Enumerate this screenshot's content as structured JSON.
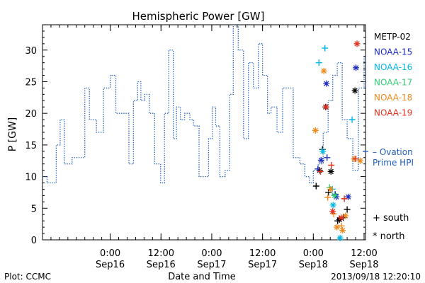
{
  "chart_data": {
    "type": "line",
    "title": "Hemispheric Power [GW]",
    "xlabel": "Date and Time",
    "ylabel": "P [GW]",
    "ylim": [
      0,
      34
    ],
    "xlim": [
      "2013-09-15 08:00",
      "2013-09-18 12:20"
    ],
    "yticks": [
      0,
      5,
      10,
      15,
      20,
      25,
      30
    ],
    "xticks": [
      {
        "x": "2013-09-16 00:00",
        "time": "0:00",
        "date": "Sep16"
      },
      {
        "x": "2013-09-16 12:00",
        "time": "12:00",
        "date": "Sep16"
      },
      {
        "x": "2013-09-17 00:00",
        "time": "0:00",
        "date": "Sep17"
      },
      {
        "x": "2013-09-17 12:00",
        "time": "12:00",
        "date": "Sep17"
      },
      {
        "x": "2013-09-18 00:00",
        "time": "0:00",
        "date": "Sep18"
      },
      {
        "x": "2013-09-18 12:00",
        "time": "12:00",
        "date": "Sep18"
      }
    ],
    "ovation": {
      "name": "Ovation Prime HPI",
      "legend_lines": [
        "– Ovation",
        "Prime HPI"
      ],
      "color": "#1f5fbf",
      "x": [
        "2013-09-15 08:00",
        "2013-09-15 09:05",
        "2013-09-15 11:15",
        "2013-09-15 12:10",
        "2013-09-15 13:10",
        "2013-09-15 15:00",
        "2013-09-15 18:00",
        "2013-09-15 19:05",
        "2013-09-15 20:45",
        "2013-09-15 22:25",
        "2013-09-16 00:00",
        "2013-09-16 01:20",
        "2013-09-16 03:15",
        "2013-09-16 04:25",
        "2013-09-16 05:30",
        "2013-09-16 06:30",
        "2013-09-16 07:15",
        "2013-09-16 08:10",
        "2013-09-16 09:15",
        "2013-09-16 10:30",
        "2013-09-16 11:55",
        "2013-09-16 12:50",
        "2013-09-16 13:50",
        "2013-09-16 14:55",
        "2013-09-16 15:40",
        "2013-09-16 16:35",
        "2013-09-16 17:35",
        "2013-09-16 18:50",
        "2013-09-16 19:40",
        "2013-09-16 21:00",
        "2013-09-16 22:25",
        "2013-09-16 23:15",
        "2013-09-17 00:10",
        "2013-09-17 00:55",
        "2013-09-17 01:55",
        "2013-09-17 03:10",
        "2013-09-17 04:15",
        "2013-09-17 05:05",
        "2013-09-17 06:15",
        "2013-09-17 07:30",
        "2013-09-17 08:40",
        "2013-09-17 09:50",
        "2013-09-17 11:00",
        "2013-09-17 12:00",
        "2013-09-17 13:10",
        "2013-09-17 14:00",
        "2013-09-17 15:25",
        "2013-09-17 16:45",
        "2013-09-17 18:10",
        "2013-09-17 19:15",
        "2013-09-17 20:50",
        "2013-09-17 22:00",
        "2013-09-17 23:05",
        "2013-09-18 00:00",
        "2013-09-18 01:10",
        "2013-09-18 02:20",
        "2013-09-18 03:30",
        "2013-09-18 04:35",
        "2013-09-18 05:40",
        "2013-09-18 06:50",
        "2013-09-18 08:00",
        "2013-09-18 09:20",
        "2013-09-18 10:40",
        "2013-09-18 12:00",
        "2013-09-18 12:20"
      ],
      "y": [
        10,
        9,
        15,
        19,
        12,
        13,
        24,
        19,
        17,
        24,
        26,
        20,
        20,
        12,
        22,
        25,
        22,
        23,
        20,
        12,
        9,
        20,
        30,
        16,
        21,
        19,
        20,
        19,
        18,
        10,
        10,
        16,
        21,
        18,
        10,
        11,
        23,
        34,
        30,
        16,
        28,
        24,
        31,
        26,
        20,
        21,
        17,
        24,
        24,
        13,
        12,
        10,
        9,
        11,
        12,
        17,
        22,
        26,
        28,
        19,
        16,
        11,
        24,
        29,
        29
      ]
    },
    "series": [
      {
        "name": "METP-02",
        "color": "#000000",
        "south": [
          {
            "x": "2013-09-18 00:40",
            "y": 8.5
          },
          {
            "x": "2013-09-18 02:10",
            "y": 14.3
          },
          {
            "x": "2013-09-18 03:35",
            "y": 7.5
          },
          {
            "x": "2013-09-18 05:45",
            "y": 3
          },
          {
            "x": "2013-09-18 07:05",
            "y": 3.5
          },
          {
            "x": "2013-09-18 08:00",
            "y": 4.8
          }
        ],
        "north": [
          {
            "x": "2013-09-18 01:30",
            "y": 11
          },
          {
            "x": "2013-09-18 02:55",
            "y": 21
          },
          {
            "x": "2013-09-18 04:10",
            "y": 10.8
          },
          {
            "x": "2013-09-18 06:10",
            "y": 3.2
          },
          {
            "x": "2013-09-18 09:50",
            "y": 23.6
          }
        ]
      },
      {
        "name": "NOAA-15",
        "color": "#1f2fbf",
        "south": [
          {
            "x": "2013-09-18 01:05",
            "y": 11.2
          },
          {
            "x": "2013-09-18 03:15",
            "y": 13
          },
          {
            "x": "2013-09-18 05:10",
            "y": 7.2
          }
        ],
        "north": [
          {
            "x": "2013-09-18 01:50",
            "y": 12.6
          },
          {
            "x": "2013-09-18 03:05",
            "y": 24.7
          },
          {
            "x": "2013-09-18 05:25",
            "y": 6.8
          },
          {
            "x": "2013-09-18 08:15",
            "y": 6.8
          },
          {
            "x": "2013-09-18 10:05",
            "y": 27.2
          }
        ]
      },
      {
        "name": "NOAA-16",
        "color": "#00b7e6",
        "south": [
          {
            "x": "2013-09-18 01:20",
            "y": 28
          },
          {
            "x": "2013-09-18 02:45",
            "y": 30.3
          },
          {
            "x": "2013-09-18 04:30",
            "y": 8
          },
          {
            "x": "2013-09-18 09:10",
            "y": 19
          }
        ],
        "north": [
          {
            "x": "2013-09-18 02:15",
            "y": 14
          },
          {
            "x": "2013-09-18 04:40",
            "y": 5.5
          },
          {
            "x": "2013-09-18 06:20",
            "y": 0.3
          }
        ]
      },
      {
        "name": "NOAA-17",
        "color": "#33cc77",
        "south": [
          {
            "x": "2013-09-18 03:50",
            "y": 8.3
          }
        ],
        "north": [
          {
            "x": "2013-09-18 05:00",
            "y": 7
          }
        ]
      },
      {
        "name": "NOAA-18",
        "color": "#f08a1c",
        "south": [
          {
            "x": "2013-09-18 03:25",
            "y": 6.7
          },
          {
            "x": "2013-09-18 04:50",
            "y": 4.1
          },
          {
            "x": "2013-09-18 06:40",
            "y": 2.2
          }
        ],
        "north": [
          {
            "x": "2013-09-18 00:30",
            "y": 17.3
          },
          {
            "x": "2013-09-18 02:30",
            "y": 26.7
          },
          {
            "x": "2013-09-18 04:05",
            "y": 8
          },
          {
            "x": "2013-09-18 05:35",
            "y": 2
          },
          {
            "x": "2013-09-18 06:55",
            "y": 1.5
          },
          {
            "x": "2013-09-18 07:35",
            "y": 3.8
          },
          {
            "x": "2013-09-18 09:40",
            "y": 12.8
          },
          {
            "x": "2013-09-18 11:05",
            "y": 12.5
          }
        ]
      },
      {
        "name": "NOAA-19",
        "color": "#e0301e",
        "south": [
          {
            "x": "2013-09-18 01:40",
            "y": 10.8
          },
          {
            "x": "2013-09-18 04:15",
            "y": 11.8
          },
          {
            "x": "2013-09-18 07:20",
            "y": 6.5
          },
          {
            "x": "2013-09-18 10:00",
            "y": 12.8
          }
        ],
        "north": [
          {
            "x": "2013-09-18 03:00",
            "y": 21
          },
          {
            "x": "2013-09-18 04:35",
            "y": 4.5
          },
          {
            "x": "2013-09-18 06:35",
            "y": 3.5
          },
          {
            "x": "2013-09-18 10:20",
            "y": 31
          }
        ]
      }
    ],
    "symbol_legend": [
      {
        "symbol": "+",
        "label": "south"
      },
      {
        "symbol": "*",
        "label": "north"
      }
    ],
    "legend_placement": "right",
    "grid": false
  },
  "footer": {
    "plot_source": "Plot: CCMC",
    "timestamp": "2013/09/18 12:20:10"
  }
}
